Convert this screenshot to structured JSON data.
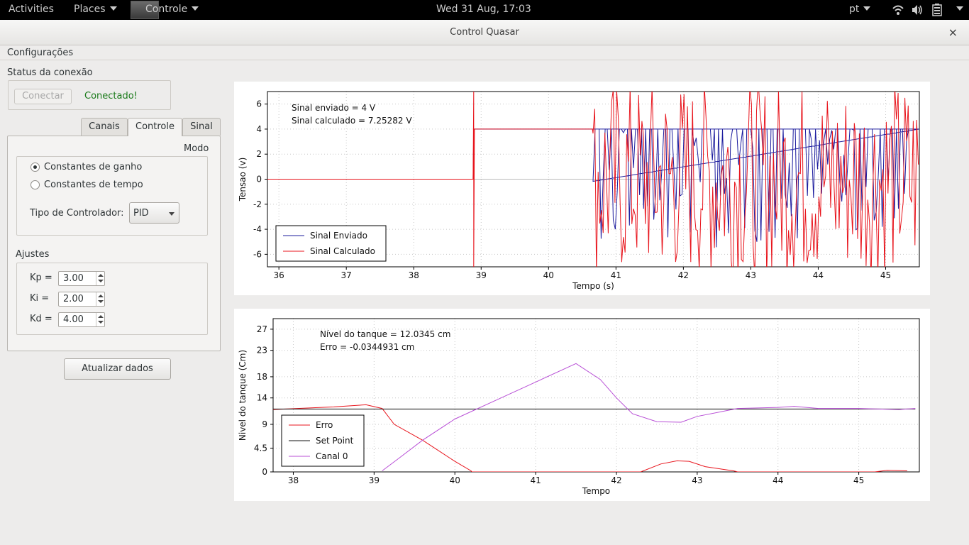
{
  "topbar": {
    "activities": "Activities",
    "places": "Places",
    "app_menu": "Controle",
    "clock": "Wed 31 Aug, 17:03",
    "lang": "pt",
    "icons": [
      "wifi-icon",
      "volume-icon",
      "battery-icon"
    ]
  },
  "window": {
    "title": "Control Quasar",
    "close": "×"
  },
  "menubar": {
    "config": "Configurações"
  },
  "connection": {
    "title": "Status da conexão",
    "connect_button": "Conectar",
    "status": "Conectado!",
    "status_color": "#1a7a1a"
  },
  "tabs": [
    {
      "label": "Canais",
      "active": false
    },
    {
      "label": "Controle",
      "active": true
    },
    {
      "label": "Sinal",
      "active": false
    }
  ],
  "controle": {
    "modo": "Modo",
    "options": [
      {
        "label": "Constantes de ganho",
        "selected": true
      },
      {
        "label": "Constantes de tempo",
        "selected": false
      }
    ],
    "tipo_label": "Tipo de Controlador:",
    "tipo_value": "PID",
    "ajustes": "Ajustes",
    "params": [
      {
        "label": "Kp =",
        "value": "3.00"
      },
      {
        "label": "Ki =",
        "value": "2.00"
      },
      {
        "label": "Kd =",
        "value": "4.00"
      }
    ]
  },
  "update_button": "Atualizar dados",
  "chart_data": [
    {
      "type": "line",
      "xlabel": "Tempo (s)",
      "ylabel": "Tensao (v)",
      "xlim": [
        35.83,
        45.5
      ],
      "ylim": [
        -7,
        7
      ],
      "xticks": [
        36,
        37,
        38,
        39,
        40,
        41,
        42,
        43,
        44,
        45
      ],
      "yticks": [
        6,
        4,
        2,
        0,
        -2,
        -4,
        -6
      ],
      "grid": true,
      "annotations": [
        "Sinal enviado = 4 V",
        "Sinal calculado = 7.25282 V"
      ],
      "legend_position": "bottom-left",
      "series": [
        {
          "name": "Sinal Enviado",
          "color": "#1c1c9e",
          "x": [
            35.83,
            38.88,
            38.89,
            40.65,
            45.5
          ],
          "y": [
            0,
            0,
            4,
            4,
            4
          ]
        },
        {
          "name": "Sinal Calculado",
          "color": "#e8141c",
          "x": [
            35.83,
            38.88,
            38.89
          ],
          "y": [
            0,
            0,
            7
          ]
        }
      ]
    },
    {
      "type": "line",
      "xlabel": "Tempo",
      "ylabel": "Nivel do tanque (Cm)",
      "xlim": [
        37.75,
        45.75
      ],
      "ylim": [
        0,
        29
      ],
      "xticks": [
        38,
        39,
        40,
        41,
        42,
        43,
        44,
        45
      ],
      "yticks": [
        "0",
        "4.5",
        "9",
        "14",
        "18",
        "23",
        "27"
      ],
      "grid": true,
      "annotations": [
        "Nível do tanque = 12.0345 cm",
        "Erro = -0.0344931 cm"
      ],
      "legend_position": "bottom-left",
      "series": [
        {
          "name": "Erro",
          "color": "#e8141c",
          "x": [
            37.75,
            38.5,
            38.9,
            39.1,
            39.25,
            39.6,
            40.0,
            40.2,
            40.21,
            42.3,
            42.55,
            42.75,
            42.9,
            43.1,
            43.45,
            43.5,
            45.2,
            45.35,
            45.6
          ],
          "y": [
            11.8,
            12.3,
            12.7,
            12.0,
            9.0,
            6.0,
            2.0,
            0.2,
            0,
            0,
            1.5,
            2.1,
            2.0,
            1.0,
            0.2,
            0,
            0,
            0.3,
            0.2
          ]
        },
        {
          "name": "Set Point",
          "color": "#111111",
          "x": [
            37.75,
            45.7
          ],
          "y": [
            11.9,
            11.9
          ]
        },
        {
          "name": "Canal 0",
          "color": "#b84fd6",
          "x": [
            39.1,
            39.3,
            39.6,
            40.0,
            40.5,
            41.0,
            41.5,
            41.8,
            42.0,
            42.2,
            42.5,
            42.8,
            43.0,
            43.5,
            44.0,
            44.2,
            44.5,
            45.0,
            45.5,
            45.7
          ],
          "y": [
            0.2,
            2.5,
            6.0,
            10.0,
            13.5,
            17.0,
            20.5,
            17.5,
            14.0,
            11.0,
            9.5,
            9.4,
            10.5,
            12.0,
            12.2,
            12.4,
            12.0,
            12.0,
            11.8,
            12.0
          ]
        }
      ]
    }
  ]
}
